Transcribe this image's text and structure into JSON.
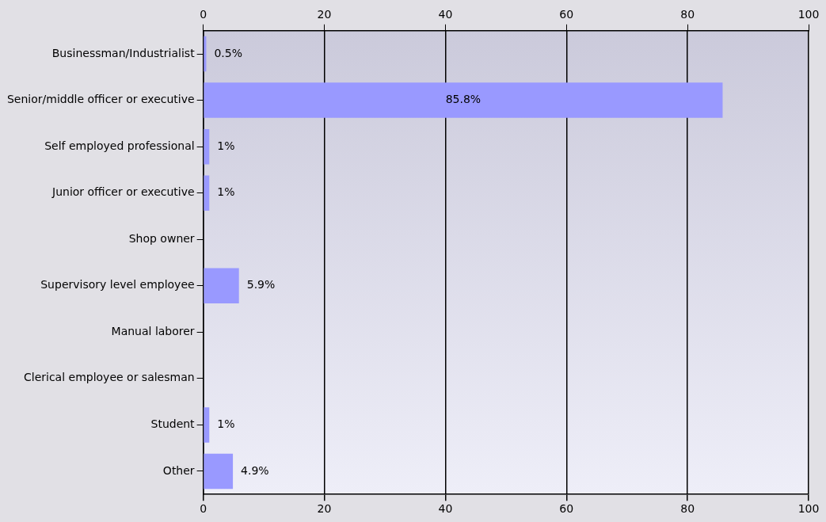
{
  "chart_data": {
    "type": "bar",
    "orientation": "horizontal",
    "categories": [
      "Businessman/Industrialist",
      "Senior/middle officer or executive",
      "Self employed professional",
      "Junior officer or executive",
      "Shop owner",
      "Supervisory level employee",
      "Manual laborer",
      "Clerical employee or salesman",
      "Student",
      "Other"
    ],
    "values": [
      0.5,
      85.8,
      1,
      1,
      0,
      5.9,
      0,
      0,
      1,
      4.9
    ],
    "value_labels": [
      "0.5%",
      "85.8%",
      "1%",
      "1%",
      null,
      "5.9%",
      null,
      null,
      "1%",
      "4.9%"
    ],
    "color": "#9999ff",
    "xlim": [
      0,
      100
    ],
    "xticks": [
      0,
      20,
      40,
      60,
      80,
      100
    ],
    "x2lim": [
      0,
      100
    ],
    "x2ticks": [
      0,
      20,
      40,
      60,
      80,
      100
    ],
    "grid": "x"
  }
}
